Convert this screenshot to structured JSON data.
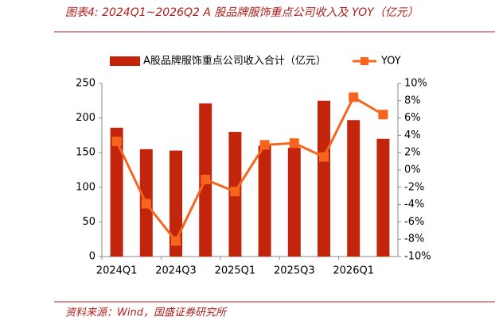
{
  "chart_data": {
    "type": "combo",
    "title": "图表4:  2024Q1~2026Q2 A 股品牌服饰重点公司收入及 YOY（亿元）",
    "source": "资料来源：Wind，国盛证券研究所",
    "categories": [
      "2024Q1",
      null,
      "2024Q3",
      null,
      "2025Q1",
      null,
      "2025Q3",
      null,
      "2026Q1",
      null
    ],
    "series": [
      {
        "name": "A股品牌服饰重点公司收入合计（亿元）",
        "type": "bar",
        "color": "#c3250c",
        "values": [
          186,
          155,
          153,
          221,
          180,
          160,
          157,
          225,
          197,
          170
        ]
      },
      {
        "name": "YOY",
        "type": "line",
        "axis": "y2",
        "color": "#f5651e",
        "values": [
          3.3,
          -3.9,
          -8.2,
          -1.1,
          -2.5,
          2.9,
          3.1,
          1.5,
          8.4,
          6.4
        ]
      }
    ],
    "ylim": [
      0,
      250
    ],
    "yticks": [
      0,
      50,
      100,
      150,
      200,
      250
    ],
    "y2lim": [
      -10,
      10
    ],
    "y2ticks": [
      {
        "value": -10,
        "label": "-10%"
      },
      {
        "value": -8,
        "label": "-8%"
      },
      {
        "value": -6,
        "label": "-6%"
      },
      {
        "value": -4,
        "label": "-4%"
      },
      {
        "value": -2,
        "label": "-2%"
      },
      {
        "value": 0,
        "label": "0%"
      },
      {
        "value": 2,
        "label": "2%"
      },
      {
        "value": 4,
        "label": "4%"
      },
      {
        "value": 6,
        "label": "6%"
      },
      {
        "value": 8,
        "label": "8%"
      },
      {
        "value": 10,
        "label": "10%"
      }
    ]
  }
}
